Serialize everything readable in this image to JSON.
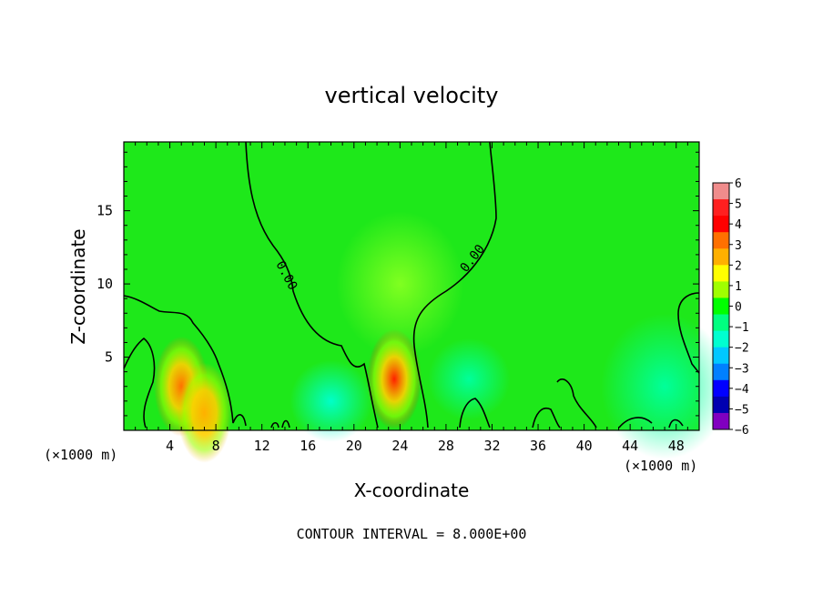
{
  "chart_data": {
    "type": "heatmap",
    "title": "vertical velocity",
    "xlabel": "X-coordinate",
    "ylabel": "Z-coordinate",
    "x_unit_left": "(×1000 m)",
    "x_unit_right": "(×1000 m)",
    "xlim": [
      0,
      50
    ],
    "ylim": [
      0,
      19.7
    ],
    "xticks": [
      4,
      8,
      12,
      16,
      20,
      24,
      28,
      32,
      36,
      40,
      44,
      48
    ],
    "yticks": [
      5,
      10,
      15
    ],
    "colorbar": {
      "ticks": [
        "6",
        "5",
        "4",
        "3",
        "2",
        "1",
        "0",
        "−1",
        "−2",
        "−3",
        "−4",
        "−5",
        "−6"
      ],
      "colors": [
        "#f08c8c",
        "#ff2020",
        "#ff0000",
        "#ff7000",
        "#ffb000",
        "#ffff00",
        "#a0ff00",
        "#00ff00",
        "#00ff80",
        "#00ffd0",
        "#00c8ff",
        "#0080ff",
        "#0000ff",
        "#0000b0",
        "#8000c0"
      ]
    },
    "contour_label": "0.00",
    "field_features": [
      {
        "x": 5.0,
        "z": 3.0,
        "peak": 3.5
      },
      {
        "x": 7.0,
        "z": 1.2,
        "peak": 2.5
      },
      {
        "x": 23.5,
        "z": 3.5,
        "peak": 4.2
      },
      {
        "x": 18.0,
        "z": 2.0,
        "peak": -1.5
      },
      {
        "x": 30.0,
        "z": 3.5,
        "peak": -1.2
      },
      {
        "x": 47.0,
        "z": 3.0,
        "peak": -1.0
      },
      {
        "x": 24.0,
        "z": 10.0,
        "peak": 0.5
      }
    ],
    "annotation": "CONTOUR INTERVAL = 8.000E+00"
  }
}
